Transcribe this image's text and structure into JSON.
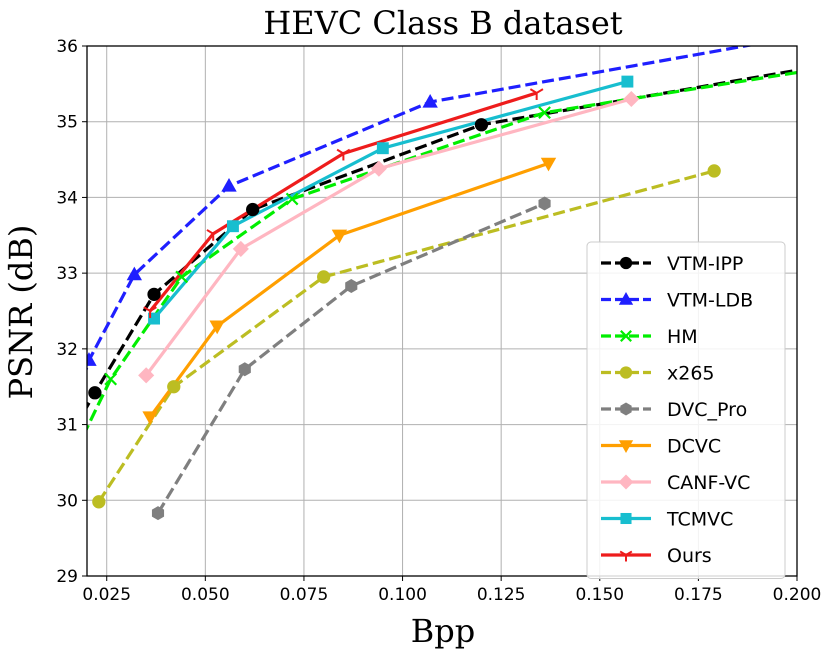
{
  "chart_data": {
    "type": "line",
    "title": "HEVC Class B dataset",
    "xlabel": "Bpp",
    "ylabel": "PSNR (dB)",
    "xlim": [
      0.02,
      0.2
    ],
    "ylim": [
      29,
      36
    ],
    "xticks": [
      "0.025",
      "0.050",
      "0.075",
      "0.100",
      "0.125",
      "0.150",
      "0.175",
      "0.200"
    ],
    "xtick_values": [
      0.025,
      0.05,
      0.075,
      0.1,
      0.125,
      0.15,
      0.175,
      0.2
    ],
    "yticks": [
      "29",
      "30",
      "31",
      "32",
      "33",
      "34",
      "35",
      "36"
    ],
    "ytick_values": [
      29,
      30,
      31,
      32,
      33,
      34,
      35,
      36
    ],
    "grid": true,
    "legend_position": "right",
    "series": [
      {
        "name": "VTM-IPP",
        "color": "#000000",
        "dash": "dashed",
        "marker": "circle",
        "x": [
          0.022,
          0.037,
          0.062,
          0.12
        ],
        "y": [
          31.42,
          32.72,
          33.84,
          34.96
        ],
        "extend_x": [
          0.019,
          0.2
        ],
        "extend_y": [
          31.15,
          35.68
        ]
      },
      {
        "name": "VTM-LDB",
        "color": "#1f1fff",
        "dash": "dashed",
        "marker": "triangle-up",
        "x": [
          0.0205,
          0.032,
          0.056,
          0.107
        ],
        "y": [
          31.85,
          32.98,
          34.15,
          35.26
        ],
        "extend_x": [
          0.019,
          0.19
        ],
        "extend_y": [
          31.6,
          36.03
        ]
      },
      {
        "name": "HM",
        "color": "#00ee00",
        "dash": "dashed",
        "marker": "x",
        "x": [
          0.026,
          0.044,
          0.072,
          0.136
        ],
        "y": [
          31.6,
          32.95,
          33.98,
          35.12
        ],
        "extend_x": [
          0.019,
          0.2
        ],
        "extend_y": [
          30.85,
          35.65
        ]
      },
      {
        "name": "x265",
        "color": "#bcbd22",
        "dash": "dashed",
        "marker": "circle",
        "x": [
          0.023,
          0.042,
          0.08,
          0.179
        ],
        "y": [
          29.98,
          31.5,
          32.95,
          34.35
        ]
      },
      {
        "name": "DVC_Pro",
        "color": "#7f7f7f",
        "dash": "dashed",
        "marker": "hexagon",
        "x": [
          0.038,
          0.06,
          0.087,
          0.136
        ],
        "y": [
          29.83,
          31.73,
          32.83,
          33.92
        ]
      },
      {
        "name": "DCVC",
        "color": "#ff9f00",
        "dash": "solid",
        "marker": "triangle-down",
        "x": [
          0.036,
          0.053,
          0.084,
          0.137
        ],
        "y": [
          31.1,
          32.3,
          33.5,
          34.45
        ]
      },
      {
        "name": "CANF-VC",
        "color": "#ffb6c1",
        "dash": "solid",
        "marker": "diamond",
        "x": [
          0.035,
          0.059,
          0.094,
          0.158
        ],
        "y": [
          31.65,
          33.32,
          34.38,
          35.3
        ]
      },
      {
        "name": "TCMVC",
        "color": "#17becf",
        "dash": "solid",
        "marker": "square",
        "x": [
          0.037,
          0.057,
          0.095,
          0.157
        ],
        "y": [
          32.4,
          33.62,
          34.65,
          35.53
        ]
      },
      {
        "name": "Ours",
        "color": "#ee1c1c",
        "dash": "solid",
        "marker": "tri",
        "x": [
          0.036,
          0.052,
          0.085,
          0.134
        ],
        "y": [
          32.5,
          33.52,
          34.58,
          35.38
        ]
      }
    ]
  }
}
